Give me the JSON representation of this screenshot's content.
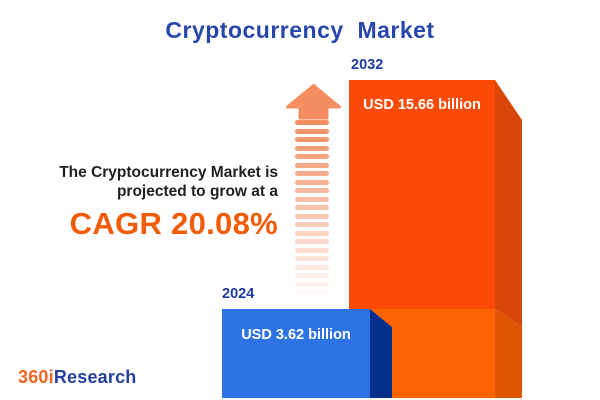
{
  "title": "Cryptocurrency  Market",
  "tagline": {
    "line1": "The Cryptocurrency Market is",
    "line2": "projected to grow at a",
    "cagr": "CAGR 20.08%"
  },
  "chart_data": {
    "type": "bar",
    "title": "Cryptocurrency Market",
    "categories": [
      "2024",
      "2032"
    ],
    "values": [
      3.62,
      15.66
    ],
    "unit": "USD billion",
    "value_labels": [
      "USD 3.62 billion",
      "USD 15.66 billion"
    ],
    "cagr_percent": 20.08,
    "annotation": "The Cryptocurrency Market is projected to grow at a CAGR 20.08%",
    "legend": "none",
    "axes": "none",
    "style": "3d-infographic-bars"
  },
  "colors": {
    "title_blue": "#2847AB",
    "year_label_blue": "#1F3C9E",
    "text_dark": "#1F1F1F",
    "cagr_orange": "#F25C07",
    "bar_2024_face": "#2E73E6",
    "bar_2024_side": "#05318C",
    "bar_2032_face_top": "#FA4A05",
    "bar_2032_face_bottom": "#FC6403",
    "bar_2032_side_top": "#D94708",
    "bar_2032_side_bottom": "#DE5502",
    "bar_value_white": "#FFFFFF",
    "arrow_orange": "#F48E60",
    "logo_orange": "#F26522",
    "logo_blue": "#24409E",
    "background": "#FFFFFF"
  },
  "logo": {
    "part1": "360i",
    "part2": "Research"
  }
}
